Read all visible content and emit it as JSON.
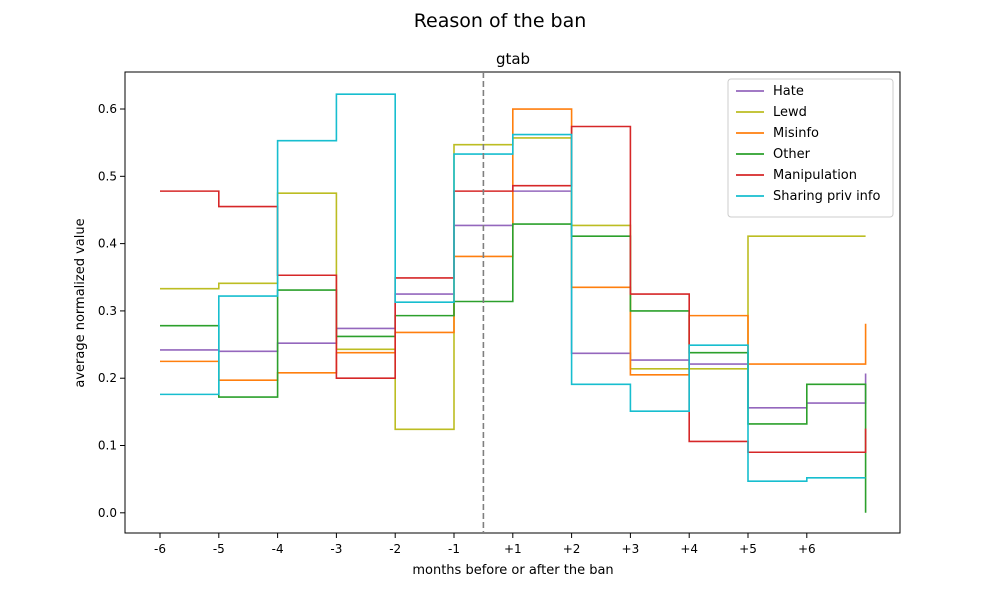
{
  "chart_data": {
    "type": "line",
    "title": "Reason of the ban",
    "subtitle": "gtab",
    "xlabel": "months before or after the ban",
    "ylabel": "average normalized value",
    "categories": [
      "-6",
      "-5",
      "-4",
      "-3",
      "-2",
      "-1",
      "+1",
      "+2",
      "+3",
      "+4",
      "+5",
      "+6"
    ],
    "yticks": [
      "0.0",
      "0.1",
      "0.2",
      "0.3",
      "0.4",
      "0.5",
      "0.6"
    ],
    "ylim": [
      -0.03,
      0.655
    ],
    "ban_marker_between": [
      "-1",
      "+1"
    ],
    "grid": false,
    "legend_position": "top-right",
    "series": [
      {
        "name": "Hate",
        "color": "#9467bd",
        "values": [
          0.242,
          0.24,
          0.252,
          0.274,
          0.325,
          0.427,
          0.478,
          0.237,
          0.227,
          0.221,
          0.156,
          0.163
        ],
        "end": 0.207
      },
      {
        "name": "Lewd",
        "color": "#bcbd22",
        "values": [
          0.333,
          0.341,
          0.475,
          0.243,
          0.124,
          0.547,
          0.557,
          0.427,
          0.214,
          0.214,
          0.411,
          0.411
        ],
        "end": 0.411
      },
      {
        "name": "Misinfo",
        "color": "#ff7f0e",
        "values": [
          0.225,
          0.197,
          0.208,
          0.238,
          0.268,
          0.381,
          0.6,
          0.335,
          0.205,
          0.293,
          0.221,
          0.221
        ],
        "end": 0.281
      },
      {
        "name": "Other",
        "color": "#2ca02c",
        "values": [
          0.278,
          0.172,
          0.331,
          0.262,
          0.293,
          0.314,
          0.429,
          0.411,
          0.3,
          0.238,
          0.132,
          0.191
        ],
        "end": 0.0
      },
      {
        "name": "Manipulation",
        "color": "#d62728",
        "values": [
          0.478,
          0.455,
          0.353,
          0.2,
          0.349,
          0.478,
          0.486,
          0.574,
          0.325,
          0.106,
          0.09,
          0.09
        ],
        "end": 0.125
      },
      {
        "name": "Sharing priv info",
        "color": "#17becf",
        "values": [
          0.176,
          0.322,
          0.553,
          0.622,
          0.313,
          0.533,
          0.562,
          0.191,
          0.151,
          0.249,
          0.047,
          0.052
        ],
        "end": 0.052
      }
    ]
  }
}
